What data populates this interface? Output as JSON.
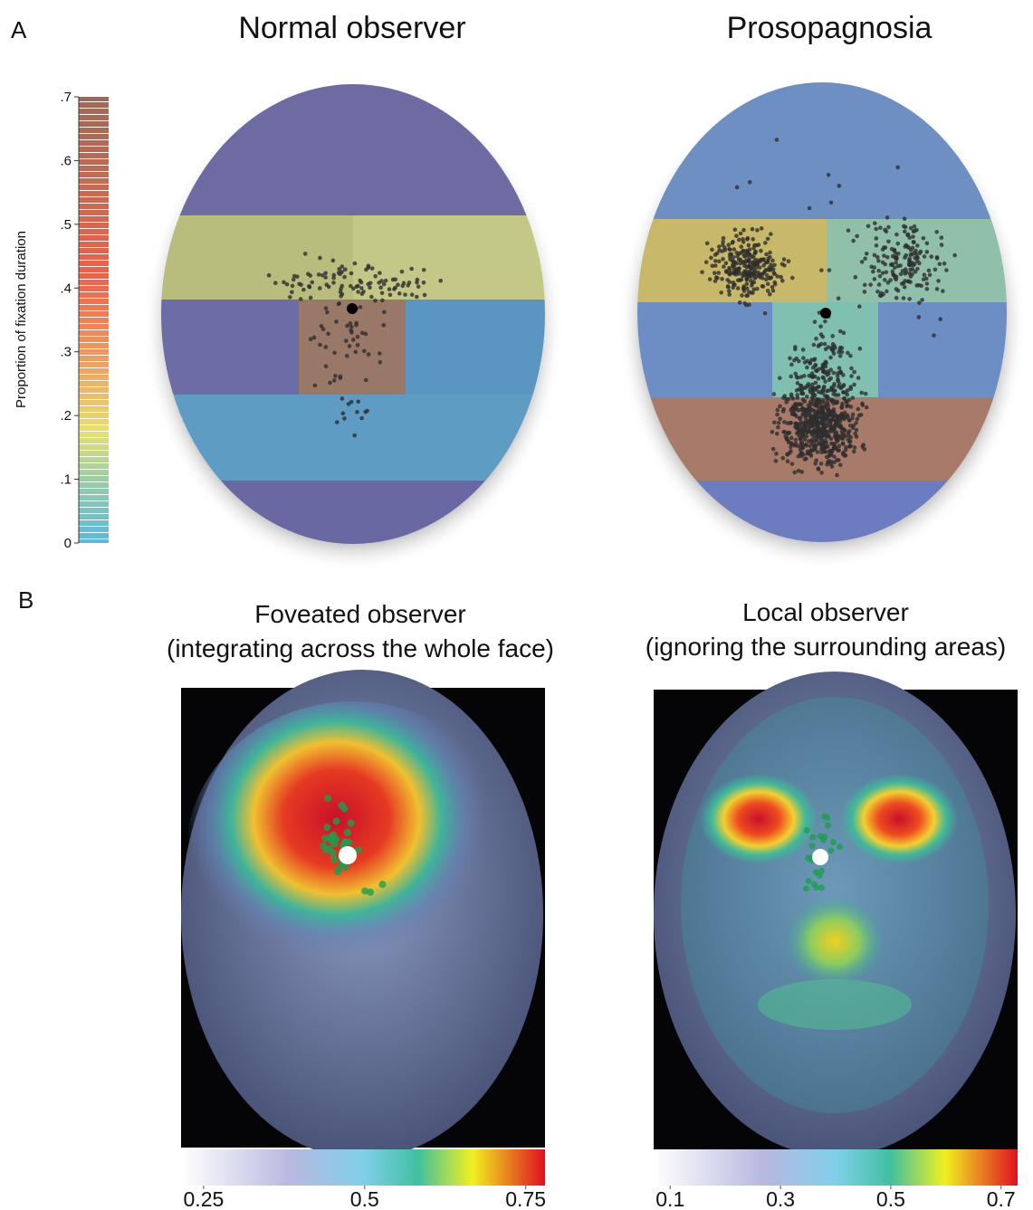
{
  "panel_a": {
    "label": "A",
    "titles": [
      "Normal observer",
      "Prosopagnosia"
    ],
    "colorbar": {
      "label": "Proportion of fixation duration",
      "lim": [
        0,
        0.7
      ],
      "ticks": [
        0,
        {
          "value": 0.1,
          "label": ".1"
        },
        {
          "value": 0.2,
          "label": ".2"
        },
        {
          "value": 0.3,
          "label": ".3"
        },
        {
          "value": 0.4,
          "label": ".4"
        },
        {
          "value": 0.5,
          "label": ".5"
        },
        {
          "value": 0.6,
          "label": ".6"
        },
        {
          "value": 0.7,
          "label": ".7"
        }
      ]
    }
  },
  "panel_b": {
    "label": "B",
    "left": {
      "title": "Foveated observer",
      "subtitle": "(integrating across the whole face)",
      "colorbar": {
        "lim": [
          0.215,
          0.78
        ],
        "ticks": [
          0.25,
          0.5,
          0.75
        ]
      }
    },
    "right": {
      "title": "Local observer",
      "subtitle": "(ignoring the surrounding areas)",
      "colorbar": {
        "lim": [
          0.07,
          0.73
        ],
        "ticks": [
          0.1,
          0.3,
          0.5,
          0.7
        ]
      }
    }
  }
}
